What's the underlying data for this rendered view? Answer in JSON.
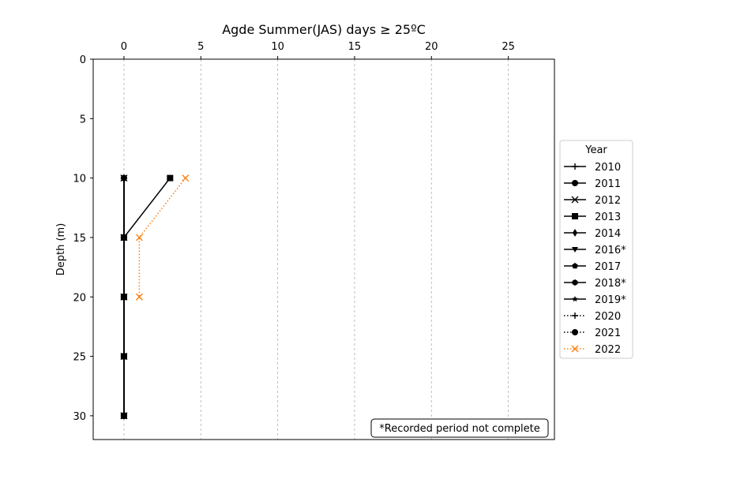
{
  "chart_data": {
    "type": "line",
    "title": "Agde Summer(JAS) days ≥ 25ºC",
    "xlabel": "",
    "ylabel": "Depth (m)",
    "x_axis_position": "top",
    "y_inverted": true,
    "xlim": [
      -2,
      28
    ],
    "ylim": [
      32,
      0
    ],
    "xticks": [
      0,
      5,
      10,
      15,
      20,
      25
    ],
    "yticks": [
      0,
      5,
      10,
      15,
      20,
      25,
      30
    ],
    "grid": "vertical dashed",
    "legend": {
      "title": "Year",
      "placement": "right"
    },
    "annotation": "*Recorded period not complete",
    "series": [
      {
        "name": "2010",
        "marker": "plus",
        "linestyle": "solid",
        "color": "#000000",
        "depths": [
          10,
          15,
          20,
          25,
          30
        ],
        "values": [
          0,
          0,
          0,
          0,
          0
        ]
      },
      {
        "name": "2011",
        "marker": "circle",
        "linestyle": "solid",
        "color": "#000000",
        "depths": [
          10,
          15,
          20,
          25,
          30
        ],
        "values": [
          0,
          0,
          0,
          0,
          0
        ]
      },
      {
        "name": "2012",
        "marker": "x",
        "linestyle": "solid",
        "color": "#000000",
        "depths": [
          10,
          15,
          20,
          25,
          30
        ],
        "values": [
          0,
          0,
          0,
          0,
          0
        ]
      },
      {
        "name": "2013",
        "marker": "square",
        "linestyle": "solid",
        "color": "#000000",
        "depths": [
          10,
          15,
          20,
          25,
          30
        ],
        "values": [
          3,
          0,
          0,
          0,
          0
        ]
      },
      {
        "name": "2014",
        "marker": "diamond",
        "linestyle": "solid",
        "color": "#000000",
        "depths": [
          10,
          15,
          20,
          25,
          30
        ],
        "values": [
          0,
          0,
          0,
          0,
          0
        ]
      },
      {
        "name": "2016*",
        "marker": "triangle-down",
        "linestyle": "solid",
        "color": "#000000",
        "depths": [
          10,
          15,
          20,
          25,
          30
        ],
        "values": [
          0,
          0,
          0,
          0,
          0
        ]
      },
      {
        "name": "2017",
        "marker": "pentagon",
        "linestyle": "solid",
        "color": "#000000",
        "depths": [
          10,
          15,
          20,
          25,
          30
        ],
        "values": [
          0,
          0,
          0,
          0,
          0
        ]
      },
      {
        "name": "2018*",
        "marker": "hexagon",
        "linestyle": "solid",
        "color": "#000000",
        "depths": [
          10,
          15,
          20,
          25,
          30
        ],
        "values": [
          0,
          0,
          0,
          0,
          0
        ]
      },
      {
        "name": "2019*",
        "marker": "star",
        "linestyle": "solid",
        "color": "#000000",
        "depths": [
          10,
          15,
          20,
          25,
          30
        ],
        "values": [
          0,
          0,
          0,
          0,
          0
        ]
      },
      {
        "name": "2020",
        "marker": "plus",
        "linestyle": "dotted",
        "color": "#000000",
        "depths": [
          10,
          15,
          20,
          25,
          30
        ],
        "values": [
          0,
          0,
          0,
          0,
          0
        ]
      },
      {
        "name": "2021",
        "marker": "circle",
        "linestyle": "dotted",
        "color": "#000000",
        "depths": [
          10,
          15,
          20,
          25,
          30
        ],
        "values": [
          0,
          0,
          0,
          0,
          0
        ]
      },
      {
        "name": "2022",
        "marker": "x",
        "linestyle": "dotted",
        "color": "#ff7f0e",
        "depths": [
          10,
          15,
          20
        ],
        "values": [
          4,
          1,
          1
        ]
      }
    ]
  }
}
